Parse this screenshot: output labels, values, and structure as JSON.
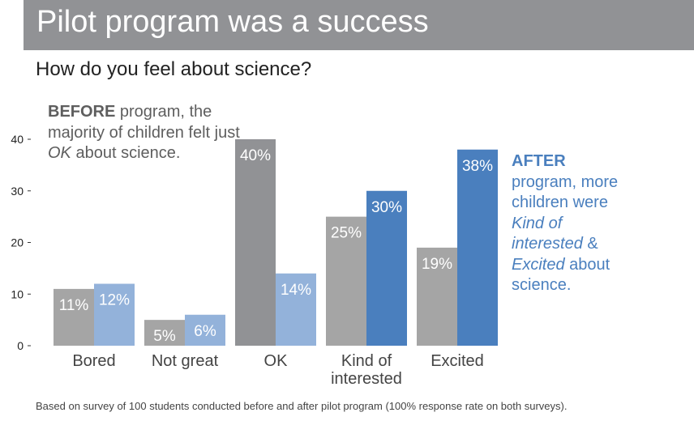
{
  "header": {
    "title": "Pilot program was a success",
    "subtitle": "How do you feel about science?"
  },
  "annotations": {
    "before": {
      "bold": "BEFORE",
      "text1": " program, the majority of children felt just ",
      "italic": "OK",
      "text2": " about science."
    },
    "after": {
      "bold": "AFTER",
      "text1": " program, more children were ",
      "italic1": "Kind of interested",
      "text2": " & ",
      "italic2": "Excited",
      "text3": " about science."
    }
  },
  "footnote": "Based on survey of 100 students conducted before and after pilot program (100% response rate on both surveys).",
  "chart_data": {
    "type": "bar",
    "categories": [
      "Bored",
      "Not great",
      "OK",
      "Kind of interested",
      "Excited"
    ],
    "category_label_lines": [
      [
        "Bored"
      ],
      [
        "Not great"
      ],
      [
        "OK"
      ],
      [
        "Kind of",
        "interested"
      ],
      [
        "Excited"
      ]
    ],
    "series": [
      {
        "values": [
          11,
          5,
          40,
          25,
          19
        ],
        "bar_colors": [
          "#a5a5a5",
          "#a5a5a5",
          "#919295",
          "#a5a5a5",
          "#a5a5a5"
        ]
      },
      {
        "values": [
          12,
          6,
          14,
          30,
          38
        ],
        "bar_colors": [
          "#93b2da",
          "#93b2da",
          "#93b2da",
          "#4a7fbe",
          "#4a7fbe"
        ]
      }
    ],
    "yticks": [
      0,
      10,
      20,
      30,
      40
    ],
    "ylim": [
      0,
      40
    ],
    "value_suffix": "%",
    "grid": false,
    "xlabel": "",
    "ylabel": ""
  }
}
